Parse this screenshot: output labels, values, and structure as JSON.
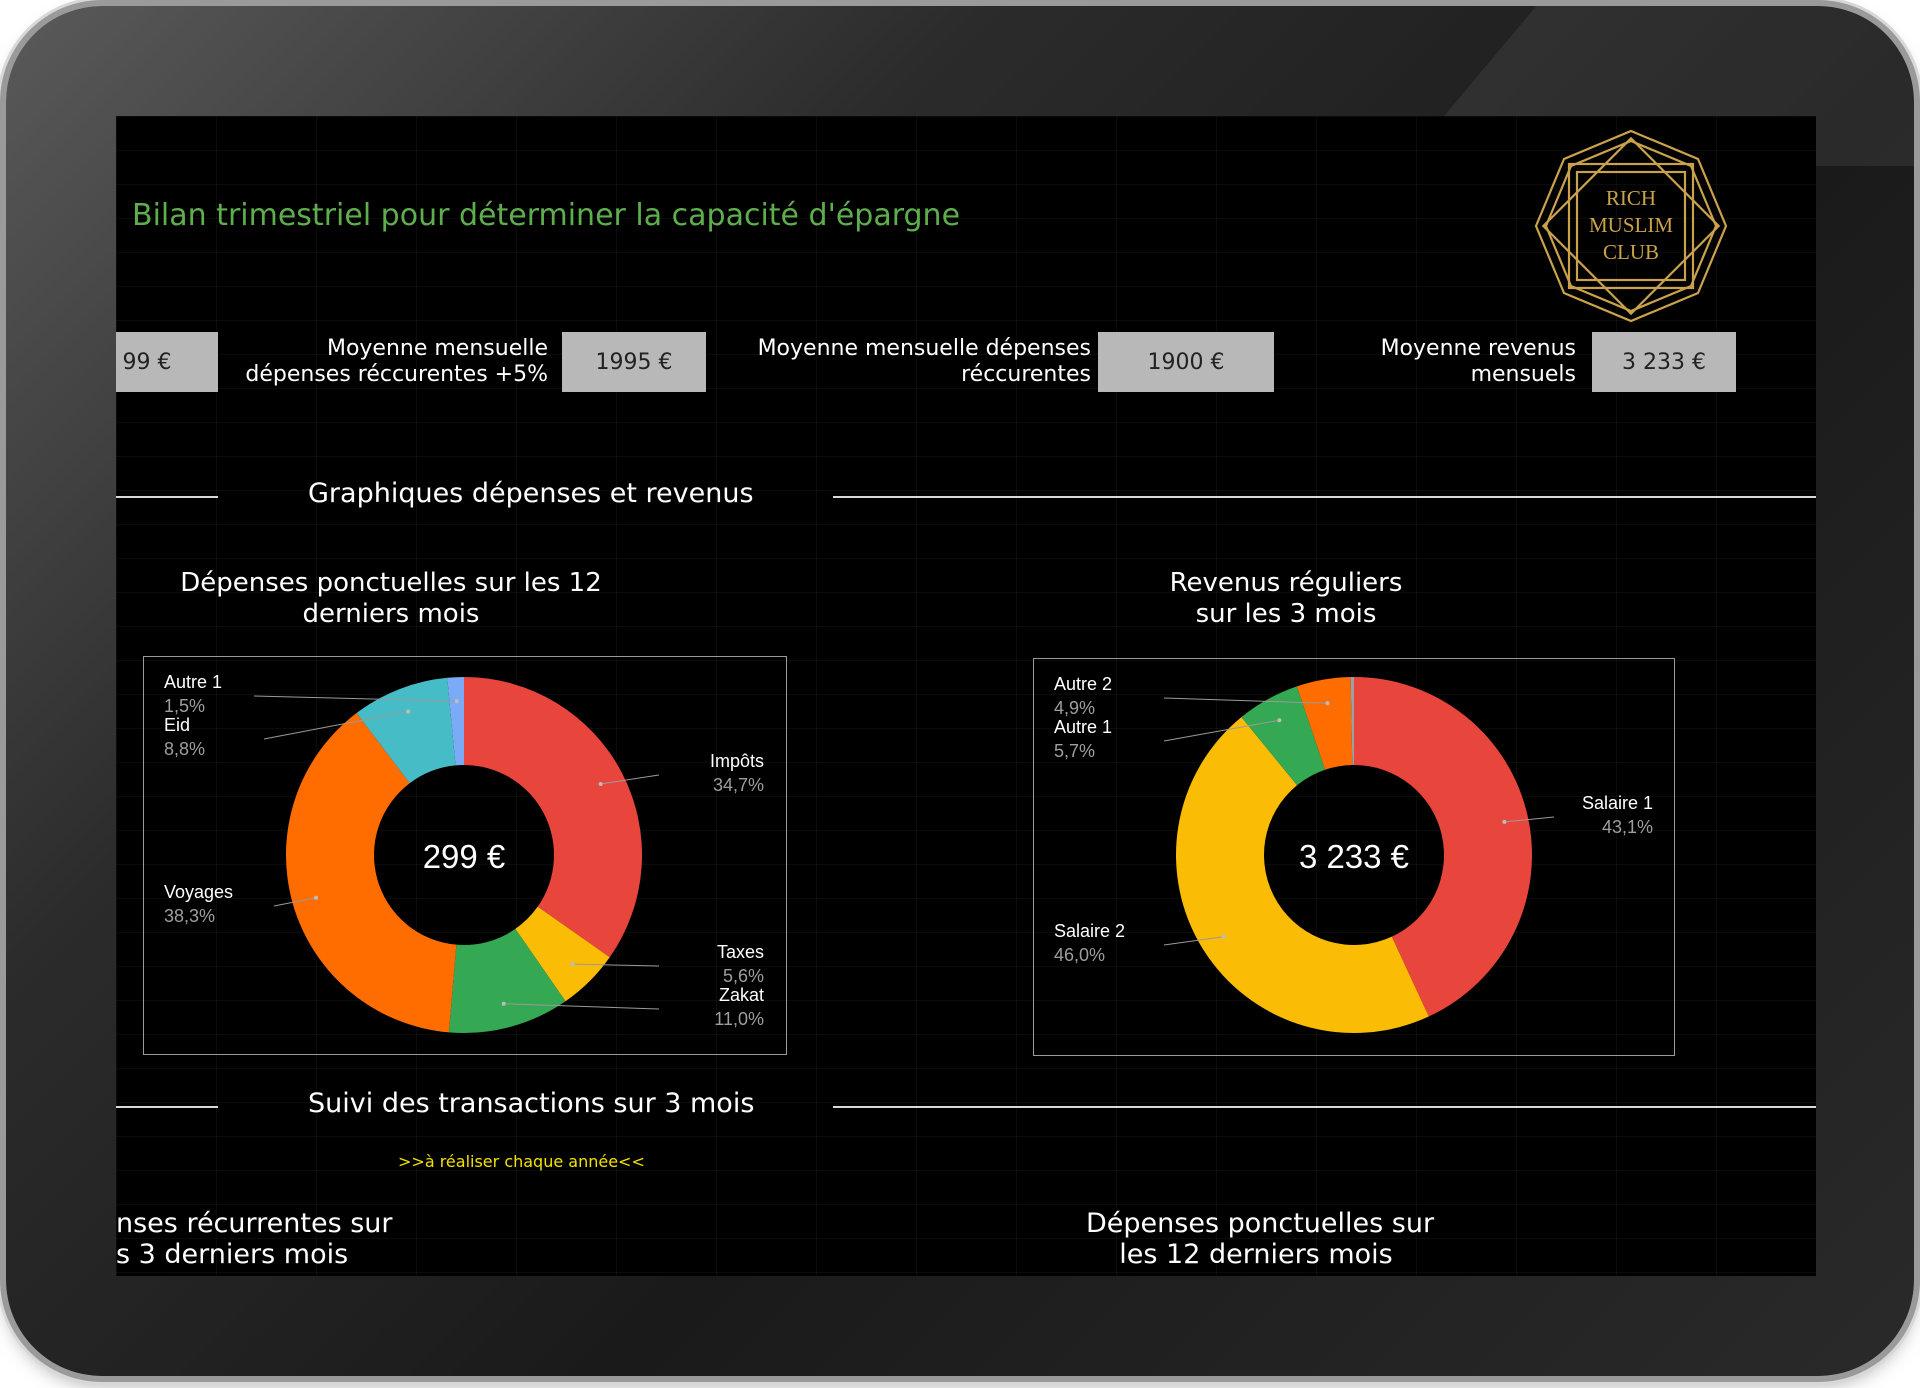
{
  "header": {
    "title": "Bilan trimestriel pour déterminer la capacité d'épargne",
    "logo_lines": [
      "RICH",
      "MUSLIM",
      "CLUB"
    ]
  },
  "kpis": [
    {
      "label_line1": "",
      "label_line2": "",
      "value": "99 €"
    },
    {
      "label_line1": "Moyenne mensuelle",
      "label_line2": "dépenses réccurentes +5%",
      "value": "1995 €"
    },
    {
      "label_line1": "Moyenne mensuelle dépenses",
      "label_line2": "réccurentes",
      "value": "1900 €"
    },
    {
      "label_line1": "Moyenne revenus",
      "label_line2": "mensuels",
      "value": "3 233 €"
    }
  ],
  "sections": {
    "charts": "Graphiques dépenses et revenus",
    "transactions": "Suivi des transactions sur 3 mois",
    "transactions_note": ">>à réaliser chaque année<<"
  },
  "bottom": {
    "left_line1": "nses récurrentes sur",
    "left_line2": "s 3 derniers mois",
    "right_line1": "Dépenses ponctuelles sur",
    "right_line2": "les 12 derniers mois"
  },
  "chart_data": [
    {
      "type": "pie",
      "donut": true,
      "title_line1": "Dépenses ponctuelles sur les 12",
      "title_line2": "derniers mois",
      "center_label": "299 €",
      "slices": [
        {
          "label": "Impôts",
          "pct_label": "34,7%",
          "value": 34.7,
          "color": "#e8453c"
        },
        {
          "label": "Taxes",
          "pct_label": "5,6%",
          "value": 5.6,
          "color": "#fbbc05"
        },
        {
          "label": "Zakat",
          "pct_label": "11,0%",
          "value": 11.0,
          "color": "#34a853"
        },
        {
          "label": "Voyages",
          "pct_label": "38,3%",
          "value": 38.3,
          "color": "#ff6d01"
        },
        {
          "label": "Eid",
          "pct_label": "8,8%",
          "value": 8.8,
          "color": "#46bdc6"
        },
        {
          "label": "Autre 1",
          "pct_label": "1,5%",
          "value": 1.5,
          "color": "#7baaf7"
        }
      ]
    },
    {
      "type": "pie",
      "donut": true,
      "title_line1": "Revenus réguliers",
      "title_line2": "sur les 3 mois",
      "center_label": "3 233 €",
      "slices": [
        {
          "label": "Salaire 1",
          "pct_label": "43,1%",
          "value": 43.1,
          "color": "#e8453c"
        },
        {
          "label": "Salaire 2",
          "pct_label": "46,0%",
          "value": 46.0,
          "color": "#fbbc05"
        },
        {
          "label": "Autre 1",
          "pct_label": "5,7%",
          "value": 5.7,
          "color": "#34a853"
        },
        {
          "label": "Autre 2",
          "pct_label": "4,9%",
          "value": 4.9,
          "color": "#ff6d01"
        },
        {
          "label": "",
          "pct_label": "",
          "value": 0.3,
          "color": "#9aa0a6"
        }
      ]
    }
  ]
}
